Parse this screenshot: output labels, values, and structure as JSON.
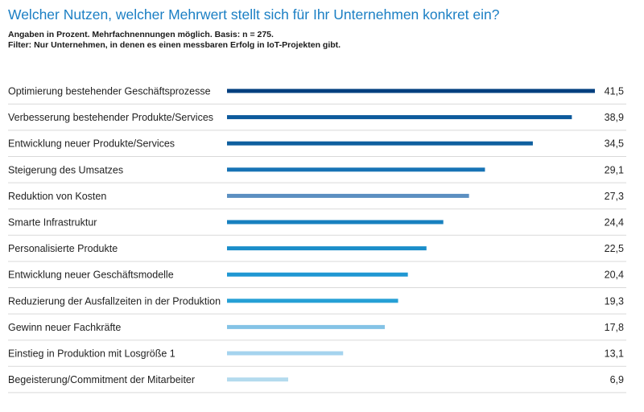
{
  "header": {
    "title": "Welcher Nutzen, welcher Mehrwert stellt sich für Ihr Unternehmen konkret ein?",
    "subtitle_line1": "Angaben in Prozent. Mehrfachnennungen möglich. Basis: n = 275.",
    "subtitle_line2": "Filter: Nur Unternehmen, in denen es einen messbaren Erfolg in IoT-Projekten gibt."
  },
  "chart_data": {
    "type": "bar",
    "orientation": "horizontal",
    "title": "Welcher Nutzen, welcher Mehrwert stellt sich für Ihr Unternehmen konkret ein?",
    "categories": [
      "Optimierung bestehender Geschäftsprozesse",
      "Verbesserung bestehender Produkte/Services",
      "Entwicklung neuer Produkte/Services",
      "Steigerung des Umsatzes",
      "Reduktion von Kosten",
      "Smarte Infrastruktur",
      "Personalisierte Produkte",
      "Entwicklung neuer Geschäftsmodelle",
      "Reduzierung der Ausfallzeiten in der Produktion",
      "Gewinn neuer Fachkräfte",
      "Einstieg in Produktion mit Losgröße 1",
      "Begeisterung/Commitment der Mitarbeiter"
    ],
    "values": [
      41.5,
      38.9,
      34.5,
      29.1,
      27.3,
      24.4,
      22.5,
      20.4,
      19.3,
      17.8,
      13.1,
      6.9
    ],
    "value_labels": [
      "41,5",
      "38,9",
      "34,5",
      "29,1",
      "27,3",
      "24,4",
      "22,5",
      "20,4",
      "19,3",
      "17,8",
      "13,1",
      "6,9"
    ],
    "bar_colors": [
      "#003f7f",
      "#0d5a9c",
      "#0f5f9f",
      "#1773b5",
      "#5b8fc1",
      "#1780bf",
      "#1a8dc9",
      "#1f97d2",
      "#26a0d6",
      "#84c3e6",
      "#a5d3ee",
      "#b4dbee"
    ],
    "xlim": [
      0,
      41.5
    ],
    "grid": false,
    "legend": "none",
    "separator_color": "#d9d9d9"
  }
}
